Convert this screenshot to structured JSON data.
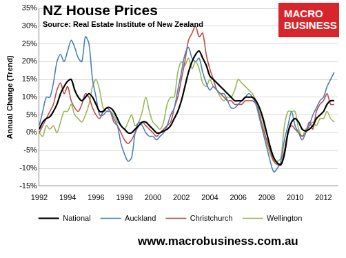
{
  "chart_data": {
    "type": "line",
    "title": "NZ House Prices",
    "subtitle": "Source: Real  Estate Institute of New Zealand",
    "logo": [
      "MACRO",
      "BUSINESS"
    ],
    "footer": "www.macrobusiness.com.au",
    "y_label": "Annual Change (Trend)",
    "x": [
      1992,
      1992.25,
      1992.5,
      1992.75,
      1993,
      1993.25,
      1993.5,
      1993.75,
      1994,
      1994.25,
      1994.5,
      1994.75,
      1995,
      1995.25,
      1995.5,
      1995.75,
      1996,
      1996.25,
      1996.5,
      1996.75,
      1997,
      1997.25,
      1997.5,
      1997.75,
      1998,
      1998.25,
      1998.5,
      1998.75,
      1999,
      1999.25,
      1999.5,
      1999.75,
      2000,
      2000.25,
      2000.5,
      2000.75,
      2001,
      2001.25,
      2001.5,
      2001.75,
      2002,
      2002.25,
      2002.5,
      2002.75,
      2003,
      2003.25,
      2003.5,
      2003.75,
      2004,
      2004.25,
      2004.5,
      2004.75,
      2005,
      2005.25,
      2005.5,
      2005.75,
      2006,
      2006.25,
      2006.5,
      2006.75,
      2007,
      2007.25,
      2007.5,
      2007.75,
      2008,
      2008.25,
      2008.5,
      2008.75,
      2009,
      2009.25,
      2009.5,
      2009.75,
      2010,
      2010.25,
      2010.5,
      2010.75,
      2011,
      2011.25,
      2011.5,
      2011.75,
      2012,
      2012.25,
      2012.5,
      2012.75
    ],
    "series": [
      {
        "name": "National",
        "color": "#000000",
        "values": [
          1,
          3,
          4,
          4.5,
          6,
          8,
          11,
          13,
          14.5,
          15,
          12,
          10,
          9,
          10,
          11,
          10,
          8,
          6,
          6,
          7,
          7,
          6,
          4,
          2,
          1,
          0,
          0,
          1,
          2,
          3,
          3,
          2,
          1,
          0,
          0,
          0.5,
          1,
          2,
          4,
          6,
          9,
          13,
          17,
          20,
          22,
          23,
          21,
          19,
          16,
          15,
          14,
          13,
          12,
          11,
          10,
          9,
          9,
          9,
          10,
          10,
          10,
          9,
          7,
          4,
          0,
          -4,
          -7,
          -8.5,
          -9,
          -6,
          0,
          3,
          4,
          3,
          1,
          0.5,
          1,
          2,
          4,
          5,
          6,
          8,
          9,
          9
        ]
      },
      {
        "name": "Auckland",
        "color": "#4a7ebb",
        "values": [
          2,
          6,
          10,
          10,
          14,
          20,
          22,
          20,
          23,
          26,
          24,
          21,
          20,
          27,
          25,
          15,
          10,
          5,
          5,
          6,
          6,
          4,
          2,
          -3,
          -6,
          -8,
          -7,
          0,
          3,
          2,
          0,
          -1,
          -1,
          -2,
          -1,
          0,
          2,
          5,
          7,
          12,
          17,
          22,
          24,
          21,
          20,
          21,
          17,
          14,
          12,
          13,
          12,
          11,
          11,
          9,
          7,
          7,
          8,
          9,
          10,
          11,
          10,
          8,
          4,
          0,
          -4,
          -8,
          -11,
          -10,
          -8,
          -2,
          2,
          6,
          2,
          0,
          -2,
          0,
          2,
          5,
          7,
          9,
          10,
          13,
          15,
          17
        ]
      },
      {
        "name": "Christchurch",
        "color": "#be4b48",
        "values": [
          0,
          2,
          4,
          6,
          8,
          12,
          14,
          11,
          13,
          9,
          7,
          6,
          8,
          11,
          10,
          7,
          5,
          4,
          6,
          7,
          6,
          3,
          2,
          0,
          -2,
          -3,
          -2,
          0,
          2,
          3,
          2,
          1,
          0,
          -1,
          0,
          1,
          2,
          3,
          7,
          10,
          15,
          20,
          26,
          28,
          30,
          27,
          28,
          22,
          18,
          15,
          12,
          11,
          10,
          9,
          9,
          8,
          8,
          8,
          9,
          9,
          9,
          8,
          5,
          1,
          -2,
          -5,
          -8,
          -9,
          -9,
          -5,
          0,
          2,
          1,
          0,
          -1,
          0,
          3,
          1,
          6,
          8,
          9,
          11,
          8,
          8
        ]
      },
      {
        "name": "Wellington",
        "color": "#98b954",
        "values": [
          0,
          -1,
          2,
          1,
          2,
          0,
          3,
          6,
          6,
          8,
          5,
          4,
          3,
          5,
          8,
          13,
          15,
          12,
          7,
          6,
          6,
          5,
          3,
          2,
          1,
          3,
          5,
          2,
          3,
          6,
          10,
          6,
          3,
          2,
          1,
          3,
          8,
          10,
          10,
          17,
          20,
          19,
          21,
          18,
          20,
          18,
          14,
          13,
          15,
          13,
          12,
          10,
          9,
          10,
          10,
          12,
          15,
          14,
          13,
          12,
          11,
          9,
          6,
          3,
          -3,
          -6,
          -8,
          -8,
          -7,
          2,
          6,
          6,
          6,
          1,
          -1,
          1,
          2,
          3,
          2,
          4,
          4,
          6,
          4,
          3
        ]
      }
    ],
    "xlim": [
      1992,
      2013
    ],
    "xticks": [
      1992,
      1994,
      1996,
      1998,
      2000,
      2002,
      2004,
      2006,
      2008,
      2010,
      2012
    ],
    "ylim": [
      -15,
      35
    ],
    "yticks": [
      {
        "value": -15,
        "label": "-15%"
      },
      {
        "value": -10,
        "label": "-10%"
      },
      {
        "value": -5,
        "label": "-5%"
      },
      {
        "value": 0,
        "label": "0%"
      },
      {
        "value": 5,
        "label": "5%"
      },
      {
        "value": 10,
        "label": "10%"
      },
      {
        "value": 15,
        "label": "15%"
      },
      {
        "value": 20,
        "label": "20%"
      },
      {
        "value": 25,
        "label": "25%"
      },
      {
        "value": 30,
        "label": "30%"
      },
      {
        "value": 35,
        "label": "35%"
      }
    ],
    "grid": true,
    "legend": "bottom"
  }
}
